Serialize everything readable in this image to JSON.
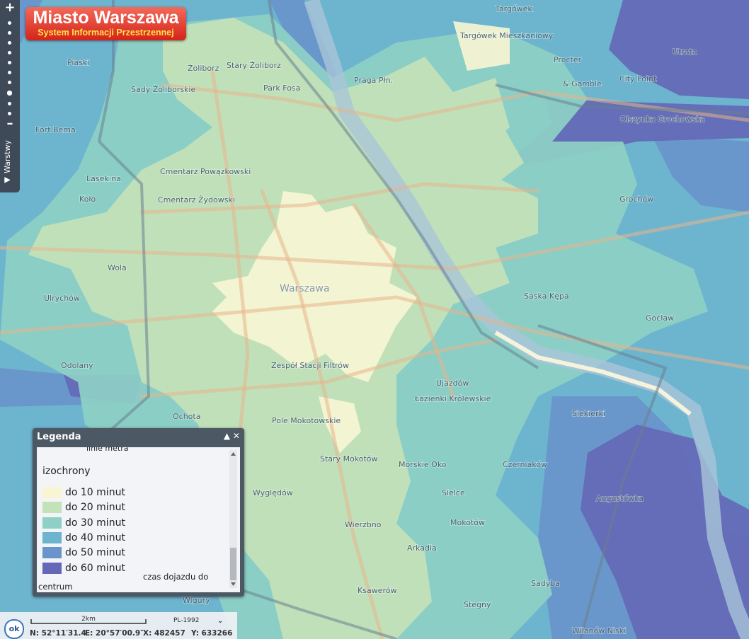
{
  "header": {
    "title": "Miasto Warszawa",
    "subtitle": "System Informacji Przestrzennej"
  },
  "sidebar": {
    "tab": "Warstwy"
  },
  "legend": {
    "title": "Legenda",
    "cut_item": "linie metra",
    "section": "izochrony",
    "items": [
      {
        "label": "do 10 minut",
        "color": "#f7f5d2"
      },
      {
        "label": "do 20 minut",
        "color": "#c4e2b8"
      },
      {
        "label": "do 30 minut",
        "color": "#8ed0c6"
      },
      {
        "label": "do 40 minut",
        "color": "#6db4cf"
      },
      {
        "label": "do 50 minut",
        "color": "#6a95cb"
      },
      {
        "label": "do 60 minut",
        "color": "#6568b6"
      }
    ],
    "note_1": "czas dojazdu do",
    "note_2": "centrum"
  },
  "map_labels": [
    "Targówek",
    "Targówek Mieszkaniowy",
    "Utrata",
    "Procter",
    "Żoliborz",
    "Stary Żoliborz",
    "Piaski",
    "Sady Żoliborskie",
    "Park Fosa",
    "Praga Płn.",
    "& Gamble",
    "City Point",
    "Olszynka Grochowska",
    "Fort Bema",
    "Lasek na",
    "Koło",
    "Cmentarz Powązkowski",
    "Cmentarz Żydowski",
    "Wola",
    "Ulrychów",
    "Odolany",
    "Warszawa",
    "Saska Kępa",
    "Gocław",
    "Grochów",
    "Zespół Stacji Filtrów",
    "Ujazdów",
    "Łazienki Królewskie",
    "Siekierki",
    "Pole Mokotowskie",
    "Ochota",
    "Stary Mokotów",
    "Morskie Oko",
    "Czerniaków",
    "Wyględów",
    "Sielce",
    "Augustówka",
    "Wierzbno",
    "Mokotów",
    "Arkadia",
    "Sadyba",
    "Ksawerów",
    "Stegny",
    "Wilanów Niski",
    "Wigury"
  ],
  "status": {
    "ok": "ok",
    "scale": "2km",
    "crs": "PL-1992",
    "n": "N: 52°11′31.4″",
    "e": "E: 20°57′00.9″",
    "x": "X: 482457",
    "y": "Y: 633266"
  }
}
